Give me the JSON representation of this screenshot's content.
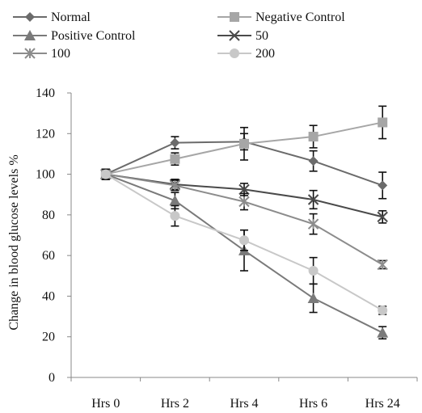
{
  "chart_data": {
    "type": "line",
    "title": "",
    "xlabel": "",
    "ylabel": "Change in blood glucose levels %",
    "categories": [
      "Hrs 0",
      "Hrs 2",
      "Hrs 4",
      "Hrs 6",
      "Hrs 24"
    ],
    "ylim": [
      0,
      140
    ],
    "yticks": [
      0,
      20,
      40,
      60,
      80,
      100,
      120,
      140
    ],
    "grid": false,
    "legend_position": "top",
    "series": [
      {
        "name": "Normal",
        "color": "#6b6b6b",
        "marker": "diamond",
        "values": [
          100,
          115.5,
          116,
          106.5,
          94.5
        ],
        "errors": [
          2.5,
          3,
          4,
          5,
          6.5
        ]
      },
      {
        "name": "Negative Control",
        "color": "#a6a6a6",
        "marker": "square",
        "values": [
          100,
          107.5,
          115,
          118.5,
          125.5
        ],
        "errors": [
          2.5,
          3,
          8,
          5.5,
          8
        ]
      },
      {
        "name": "Positive Control",
        "color": "#7a7a7a",
        "marker": "triangle",
        "values": [
          100,
          87,
          62.5,
          39,
          22
        ],
        "errors": [
          2.5,
          4,
          10,
          7,
          3
        ]
      },
      {
        "name": "50",
        "color": "#4a4a4a",
        "marker": "x",
        "values": [
          100,
          95,
          92.5,
          87.5,
          79
        ],
        "errors": [
          2.5,
          2.5,
          3,
          4.5,
          3
        ]
      },
      {
        "name": "100",
        "color": "#8c8c8c",
        "marker": "star",
        "values": [
          100,
          94.5,
          86.5,
          75.5,
          55.5
        ],
        "errors": [
          2.5,
          2.5,
          4,
          5,
          2
        ]
      },
      {
        "name": "200",
        "color": "#c8c8c8",
        "marker": "circle",
        "values": [
          100,
          79.5,
          67.5,
          52.5,
          33
        ],
        "errors": [
          2.5,
          5,
          5,
          6.5,
          2
        ]
      }
    ]
  }
}
